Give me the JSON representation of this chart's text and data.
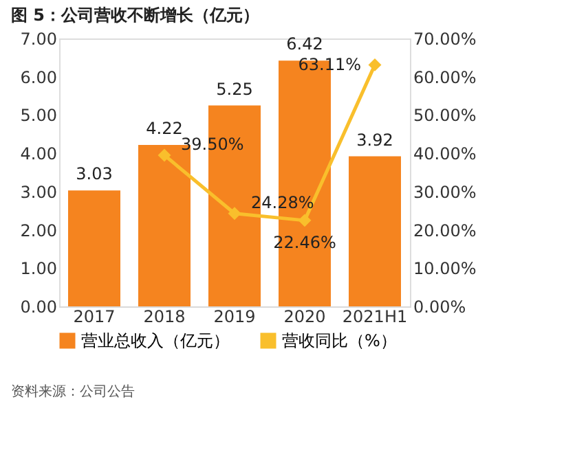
{
  "chart_data": {
    "type": "bar",
    "title": "图 5：公司营收不断增长（亿元）",
    "categories": [
      "2017",
      "2018",
      "2019",
      "2020",
      "2021H1"
    ],
    "series": [
      {
        "name": "营业总收入（亿元）",
        "color": "#f5841f",
        "values": [
          3.03,
          4.22,
          5.25,
          6.42,
          3.92
        ],
        "value_labels": [
          "3.03",
          "4.22",
          "5.25",
          "6.42",
          "3.92"
        ]
      },
      {
        "name": "营收同比（%）",
        "type": "line",
        "axis": "y2",
        "color": "#f9bf2c",
        "values": [
          null,
          39.5,
          24.28,
          22.46,
          63.11
        ],
        "value_labels": [
          null,
          "39.50%",
          "24.28%",
          "22.46%",
          "63.11%"
        ]
      }
    ],
    "ylim": [
      0,
      7
    ],
    "yticks": [
      {
        "value": 0,
        "label": "0.00"
      },
      {
        "value": 1,
        "label": "1.00"
      },
      {
        "value": 2,
        "label": "2.00"
      },
      {
        "value": 3,
        "label": "3.00"
      },
      {
        "value": 4,
        "label": "4.00"
      },
      {
        "value": 5,
        "label": "5.00"
      },
      {
        "value": 6,
        "label": "6.00"
      },
      {
        "value": 7,
        "label": "7.00"
      }
    ],
    "y2lim": [
      0,
      70
    ],
    "y2ticks": [
      {
        "value": 0,
        "label": "0.00%"
      },
      {
        "value": 10,
        "label": "10.00%"
      },
      {
        "value": 20,
        "label": "20.00%"
      },
      {
        "value": 30,
        "label": "30.00%"
      },
      {
        "value": 40,
        "label": "40.00%"
      },
      {
        "value": 50,
        "label": "50.00%"
      },
      {
        "value": 60,
        "label": "60.00%"
      },
      {
        "value": 70,
        "label": "70.00%"
      }
    ],
    "marker": "diamond",
    "grid": false,
    "legend": "bottom",
    "annotations": [
      "资料来源：公司公告"
    ]
  }
}
